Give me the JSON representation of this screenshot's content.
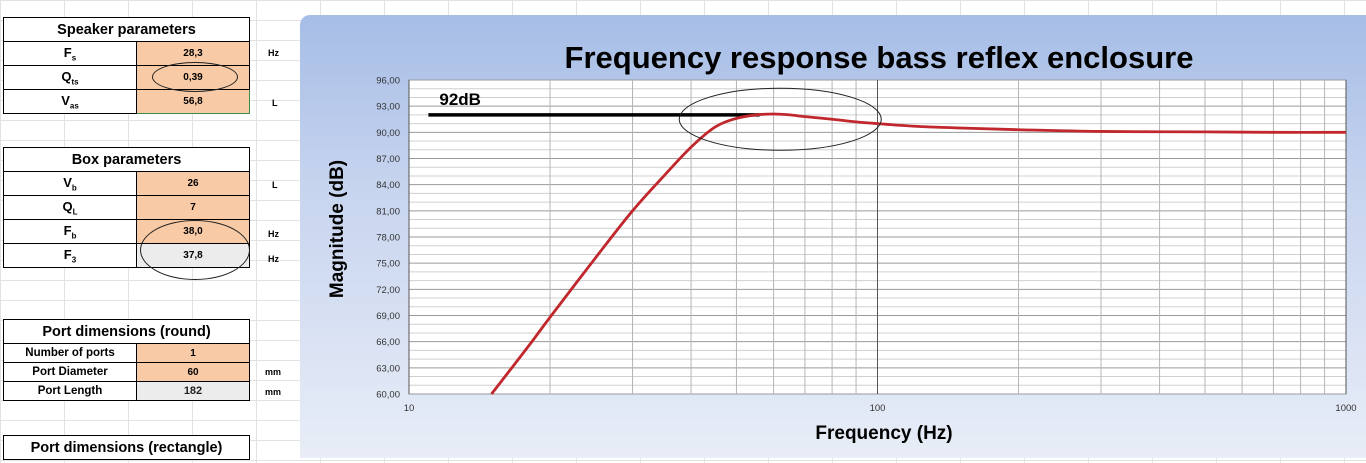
{
  "speaker": {
    "title": "Speaker parameters",
    "rows": [
      {
        "label": "F",
        "sub": "s",
        "value": "28,3",
        "unit": "Hz"
      },
      {
        "label": "Q",
        "sub": "ts",
        "value": "0,39",
        "unit": ""
      },
      {
        "label": "V",
        "sub": "as",
        "value": "56,8",
        "unit": "L"
      }
    ]
  },
  "box": {
    "title": "Box parameters",
    "rows": [
      {
        "label": "V",
        "sub": "b",
        "value": "26",
        "unit": "L"
      },
      {
        "label": "Q",
        "sub": "L",
        "value": "7",
        "unit": ""
      },
      {
        "label": "F",
        "sub": "b",
        "value": "38,0",
        "unit": "Hz"
      },
      {
        "label": "F",
        "sub": "3",
        "value": "37,8",
        "unit": "Hz"
      }
    ]
  },
  "port_round": {
    "title": "Port dimensions (round)",
    "rows": [
      {
        "label": "Number of ports",
        "value": "1",
        "unit": ""
      },
      {
        "label": "Port Diameter",
        "value": "60",
        "unit": "mm"
      },
      {
        "label": "Port Length",
        "value": "182",
        "unit": "mm"
      }
    ]
  },
  "port_rect": {
    "title": "Port dimensions (rectangle)"
  },
  "chart_data": {
    "type": "line",
    "title": "Frequency response bass reflex enclosure",
    "xlabel": "Frequency (Hz)",
    "ylabel": "Magnitude (dB)",
    "xscale": "log",
    "xlim": [
      10,
      1000
    ],
    "ylim": [
      60,
      96
    ],
    "x_ticks": [
      "10",
      "100",
      "1000"
    ],
    "y_ticks": [
      "60,00",
      "63,00",
      "66,00",
      "69,00",
      "72,00",
      "75,00",
      "78,00",
      "81,00",
      "84,00",
      "87,00",
      "90,00",
      "93,00",
      "96,00"
    ],
    "annotation": "92dB",
    "reference_line": {
      "y": 92,
      "x": [
        11,
        56
      ]
    },
    "series": [
      {
        "color": "#c0282d",
        "x": [
          15,
          18,
          20,
          25,
          30,
          35,
          40,
          45,
          50,
          55,
          60,
          65,
          70,
          80,
          90,
          100,
          120,
          150,
          200,
          300,
          500,
          700,
          1000
        ],
        "y": [
          60.0,
          65.5,
          68.8,
          75.6,
          81.0,
          85.0,
          88.3,
          90.6,
          91.6,
          92.0,
          92.1,
          92.0,
          91.8,
          91.5,
          91.2,
          91.0,
          90.7,
          90.5,
          90.3,
          90.1,
          90.05,
          90.0,
          90.0
        ]
      }
    ]
  }
}
